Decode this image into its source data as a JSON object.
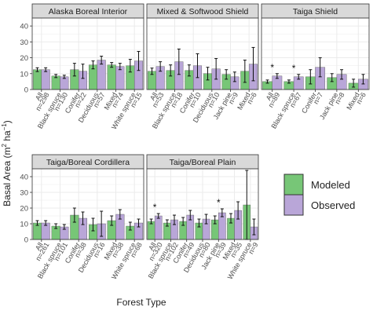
{
  "chart_data": {
    "type": "bar",
    "facets_by": "ecozone",
    "xlabel": "Forest Type",
    "ylabel_prefix": "Basal Area (m",
    "ylabel_sup1": "2",
    "ylabel_mid": " ha",
    "ylabel_sup2": "−1",
    "ylabel_suffix": ")",
    "ylim": [
      0,
      45
    ],
    "yticks": [
      "0",
      "10",
      "20",
      "30",
      "40"
    ],
    "legend": {
      "position": "right",
      "entries": [
        {
          "name": "Modeled",
          "color": "#77c677"
        },
        {
          "name": "Observed",
          "color": "#b9a6d8"
        }
      ]
    },
    "colors": {
      "modeled": "#77c677",
      "observed": "#b9a6d8",
      "panel_bg": "#ffffff",
      "strip_bg": "#d9d9d9",
      "grid": "#ebebeb",
      "frame": "#333333"
    },
    "panels": [
      {
        "title": "Alaska Boreal Interior",
        "categories": [
          "All",
          "Black spruce",
          "Conifer",
          "Deciduous",
          "Mixed",
          "White spruce"
        ],
        "n_labels": [
          "n=298",
          "n=130",
          "n=22",
          "n=57",
          "n=74",
          "n=15"
        ],
        "modeled": [
          12.5,
          8.5,
          12.5,
          15.5,
          15.5,
          15.0
        ],
        "modeled_err": [
          1.2,
          1.0,
          4.0,
          2.5,
          1.5,
          4.0
        ],
        "observed": [
          12.5,
          8.0,
          11.5,
          18.5,
          14.5,
          18.0
        ],
        "observed_err": [
          1.2,
          1.0,
          4.5,
          2.5,
          2.0,
          6.0
        ],
        "significant": [
          false,
          false,
          false,
          false,
          false,
          false
        ]
      },
      {
        "title": "Mixed & Softwood Shield",
        "categories": [
          "All",
          "Black spruce",
          "Conifer",
          "Deciduous",
          "Jack pine",
          "Mixed"
        ],
        "n_labels": [
          "n=53",
          "n=18",
          "n=10",
          "n=10",
          "n=9",
          "n=6"
        ],
        "modeled": [
          11.5,
          12.0,
          12.0,
          10.0,
          9.5,
          11.5
        ],
        "modeled_err": [
          2.0,
          3.5,
          3.5,
          4.0,
          3.0,
          7.0
        ],
        "observed": [
          14.5,
          17.5,
          15.0,
          13.0,
          8.0,
          16.0
        ],
        "observed_err": [
          3.0,
          8.0,
          7.5,
          6.5,
          3.0,
          10.5
        ],
        "significant": [
          false,
          false,
          false,
          false,
          false,
          false
        ]
      },
      {
        "title": "Taiga Shield",
        "categories": [
          "All",
          "Black spruce",
          "Conifer",
          "Jack pine",
          "Mixed"
        ],
        "n_labels": [
          "n=89",
          "n=67",
          "n=7",
          "n=8",
          "n=6"
        ],
        "modeled": [
          5.0,
          5.0,
          8.0,
          7.5,
          4.0
        ],
        "modeled_err": [
          1.0,
          1.0,
          4.5,
          2.5,
          2.5
        ],
        "observed": [
          8.5,
          8.0,
          14.0,
          9.5,
          6.5
        ],
        "observed_err": [
          1.5,
          1.5,
          6.0,
          3.0,
          3.0
        ],
        "significant": [
          true,
          true,
          false,
          false,
          false
        ],
        "marker": "*"
      },
      {
        "title": "Taiga/Boreal Cordillera",
        "categories": [
          "All",
          "Black spruce",
          "Conifer",
          "Deciduous",
          "Mixed",
          "White spruce"
        ],
        "n_labels": [
          "n=261",
          "n=101",
          "n=38",
          "n=16",
          "n=38",
          "n=68"
        ],
        "modeled": [
          10.5,
          8.5,
          15.5,
          9.5,
          12.0,
          8.5
        ],
        "modeled_err": [
          1.5,
          1.5,
          4.5,
          4.0,
          3.0,
          2.5
        ],
        "observed": [
          10.5,
          8.0,
          13.5,
          10.0,
          16.0,
          10.5
        ],
        "observed_err": [
          1.5,
          1.5,
          4.0,
          8.0,
          3.0,
          2.5
        ],
        "significant": [
          false,
          false,
          false,
          false,
          false,
          false
        ]
      },
      {
        "title": "Taiga/Boreal Plain",
        "categories": [
          "All",
          "Black spruce",
          "Conifer",
          "Deciduous",
          "Jack pine",
          "Mixed",
          "White spruce"
        ],
        "n_labels": [
          "n=320",
          "n=102",
          "n=49",
          "n=80",
          "n=39",
          "n=35",
          "n=9"
        ],
        "modeled": [
          11.5,
          10.5,
          11.5,
          10.5,
          12.5,
          13.5,
          22.0
        ],
        "modeled_err": [
          1.5,
          2.0,
          2.5,
          2.5,
          2.5,
          3.0,
          22.0
        ],
        "observed": [
          15.0,
          12.5,
          15.5,
          13.0,
          17.0,
          18.5,
          8.0
        ],
        "observed_err": [
          1.5,
          3.0,
          3.0,
          3.0,
          2.5,
          5.5,
          5.0
        ],
        "significant": [
          true,
          false,
          false,
          false,
          true,
          false,
          false
        ],
        "marker": "*"
      }
    ]
  }
}
